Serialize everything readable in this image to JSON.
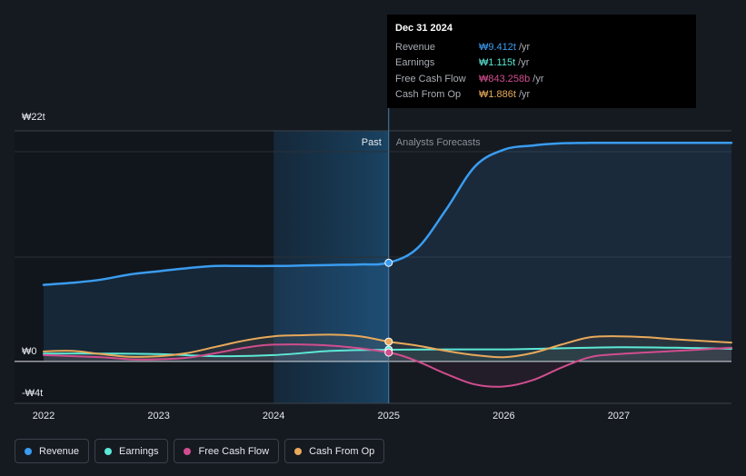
{
  "tooltip": {
    "date": "Dec 31 2024",
    "rows": [
      {
        "label": "Revenue",
        "value": "₩9.412t",
        "unit": "/yr",
        "color": "#3a9cf0"
      },
      {
        "label": "Earnings",
        "value": "₩1.115t",
        "unit": "/yr",
        "color": "#5ce8d6"
      },
      {
        "label": "Free Cash Flow",
        "value": "₩843.258b",
        "unit": "/yr",
        "color": "#d14d8e"
      },
      {
        "label": "Cash From Op",
        "value": "₩1.886t",
        "unit": "/yr",
        "color": "#e8a95a"
      }
    ]
  },
  "regions": {
    "past": "Past",
    "forecast": "Analysts Forecasts"
  },
  "legend": [
    {
      "label": "Revenue",
      "color": "#3a9cf0"
    },
    {
      "label": "Earnings",
      "color": "#5ce8d6"
    },
    {
      "label": "Free Cash Flow",
      "color": "#d14d8e"
    },
    {
      "label": "Cash From Op",
      "color": "#e8a95a"
    }
  ],
  "chart_data": {
    "type": "line",
    "title": "",
    "xlabel": "",
    "ylabel": "",
    "y_labels": [
      "₩22t",
      "₩0",
      "-₩4t"
    ],
    "x_tick_labels": [
      "2022",
      "2023",
      "2024",
      "2025",
      "2026",
      "2027"
    ],
    "x_ticks": [
      2022,
      2023,
      2024,
      2025,
      2026,
      2027
    ],
    "xlim": [
      2021.75,
      2027.98
    ],
    "ylim": [
      -4,
      22
    ],
    "past_end": 2025.0,
    "highlight_start": 2024.0,
    "grid": true,
    "series": [
      {
        "name": "Revenue",
        "color": "#3a9cf0",
        "fill": true,
        "x": [
          2022.0,
          2022.25,
          2022.5,
          2022.75,
          2023.0,
          2023.25,
          2023.5,
          2023.75,
          2024.0,
          2024.25,
          2024.5,
          2024.75,
          2025.0,
          2025.25,
          2025.5,
          2025.75,
          2026.0,
          2026.25,
          2026.5,
          2026.75,
          2027.0,
          2027.25,
          2027.5,
          2027.98
        ],
        "y": [
          7.3,
          7.5,
          7.8,
          8.3,
          8.6,
          8.9,
          9.1,
          9.1,
          9.1,
          9.15,
          9.2,
          9.25,
          9.412,
          10.8,
          14.5,
          18.6,
          20.2,
          20.6,
          20.8,
          20.85,
          20.85,
          20.85,
          20.85,
          20.85
        ]
      },
      {
        "name": "Earnings",
        "color": "#5ce8d6",
        "fill": false,
        "x": [
          2022.0,
          2022.5,
          2023.0,
          2023.5,
          2024.0,
          2024.5,
          2025.0,
          2025.5,
          2026.0,
          2026.5,
          2027.0,
          2027.5,
          2027.98
        ],
        "y": [
          0.75,
          0.75,
          0.7,
          0.5,
          0.6,
          1.0,
          1.115,
          1.15,
          1.15,
          1.25,
          1.35,
          1.3,
          1.2
        ]
      },
      {
        "name": "Free Cash Flow",
        "color": "#d14d8e",
        "fill": false,
        "x": [
          2022.0,
          2022.5,
          2022.75,
          2023.0,
          2023.25,
          2023.5,
          2023.75,
          2024.0,
          2024.5,
          2025.0,
          2025.25,
          2025.5,
          2025.75,
          2026.0,
          2026.25,
          2026.5,
          2026.75,
          2027.0,
          2027.5,
          2027.98
        ],
        "y": [
          0.6,
          0.4,
          0.2,
          0.2,
          0.35,
          0.8,
          1.3,
          1.6,
          1.5,
          0.843,
          0.0,
          -1.2,
          -2.2,
          -2.4,
          -1.8,
          -0.6,
          0.4,
          0.7,
          1.0,
          1.3
        ]
      },
      {
        "name": "Cash From Op",
        "color": "#e8a95a",
        "fill": false,
        "x": [
          2022.0,
          2022.25,
          2022.5,
          2022.75,
          2023.0,
          2023.25,
          2023.5,
          2023.75,
          2024.0,
          2024.25,
          2024.5,
          2024.75,
          2025.0,
          2025.25,
          2025.5,
          2025.75,
          2026.0,
          2026.25,
          2026.5,
          2026.75,
          2027.0,
          2027.25,
          2027.5,
          2027.98
        ],
        "y": [
          0.95,
          1.0,
          0.7,
          0.45,
          0.5,
          0.8,
          1.4,
          2.0,
          2.4,
          2.5,
          2.55,
          2.4,
          1.886,
          1.5,
          1.0,
          0.6,
          0.4,
          0.8,
          1.6,
          2.3,
          2.4,
          2.3,
          2.1,
          1.8
        ]
      }
    ],
    "markers": [
      {
        "series": "Revenue",
        "x": 2025.0,
        "y": 9.412
      },
      {
        "series": "Cash From Op",
        "x": 2025.0,
        "y": 1.886
      },
      {
        "series": "Earnings",
        "x": 2025.0,
        "y": 1.115
      },
      {
        "series": "Free Cash Flow",
        "x": 2025.0,
        "y": 0.843
      }
    ]
  }
}
